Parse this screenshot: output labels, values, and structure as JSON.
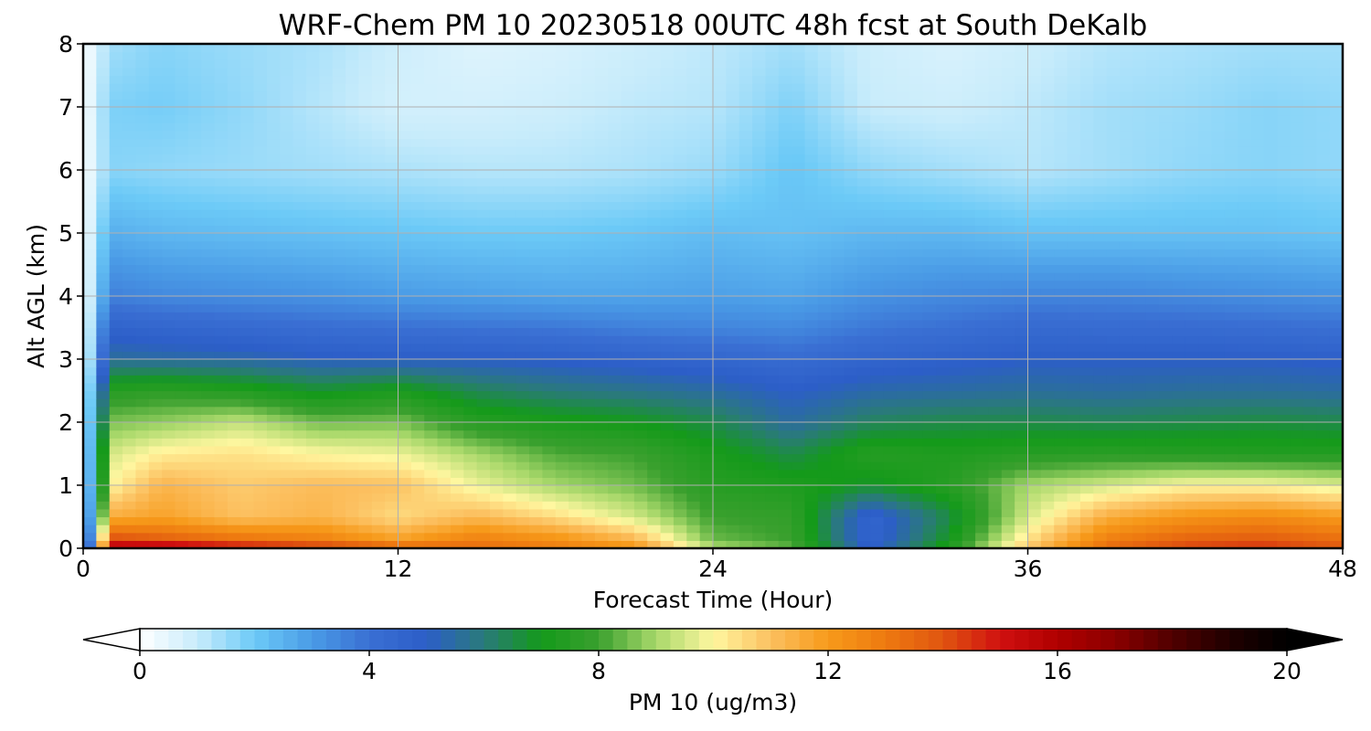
{
  "chart_data": {
    "type": "heatmap",
    "title": "WRF-Chem PM 10  20230518 00UTC 48h fcst at South DeKalb",
    "xlabel": "Forecast Time (Hour)",
    "ylabel": "Alt AGL (km)",
    "xlim": [
      0,
      48
    ],
    "ylim": [
      0,
      8
    ],
    "x_ticks": [
      "0",
      "12",
      "24",
      "36",
      "48"
    ],
    "y_ticks": [
      "0",
      "1",
      "2",
      "3",
      "4",
      "5",
      "6",
      "7",
      "8"
    ],
    "grid": true,
    "value_unit_label": "PM 10  (ug/m3)",
    "colorbar": {
      "min": 0,
      "max": 20,
      "ticks": [
        "0",
        "4",
        "8",
        "12",
        "16",
        "20"
      ],
      "extend": "both",
      "orientation": "horizontal",
      "stops": [
        [
          0,
          "#ffffff"
        ],
        [
          1,
          "#c8ecfb"
        ],
        [
          2,
          "#6ccaf7"
        ],
        [
          3,
          "#4a9be6"
        ],
        [
          4,
          "#3a6fd3"
        ],
        [
          5,
          "#2c5ec8"
        ],
        [
          6,
          "#2a7a7a"
        ],
        [
          7,
          "#149a1a"
        ],
        [
          8,
          "#3aa02e"
        ],
        [
          9,
          "#a8d86a"
        ],
        [
          10,
          "#fff7a0"
        ],
        [
          11,
          "#fcc060"
        ],
        [
          12,
          "#f79a1a"
        ],
        [
          13,
          "#ee7a10"
        ],
        [
          14,
          "#e05510"
        ],
        [
          15,
          "#d01010"
        ],
        [
          16,
          "#b00000"
        ],
        [
          17,
          "#8a0000"
        ],
        [
          18,
          "#500000"
        ],
        [
          19,
          "#200000"
        ],
        [
          20,
          "#000000"
        ]
      ]
    },
    "x": [
      0,
      1,
      3,
      6,
      9,
      12,
      15,
      18,
      21,
      24,
      27,
      30,
      33,
      36,
      39,
      42,
      45,
      48
    ],
    "y": [
      0,
      0.1,
      0.5,
      1.0,
      1.5,
      2.0,
      2.5,
      3.0,
      3.5,
      4.0,
      5.0,
      6.0,
      7.0,
      8.0
    ],
    "z": [
      [
        0,
        16.5,
        17,
        16,
        15.5,
        14.5,
        13.5,
        13,
        12.5,
        9.5,
        8.5,
        5,
        7.5,
        11,
        13.5,
        14.5,
        14.8,
        14
      ],
      [
        0,
        14.5,
        14,
        13.5,
        13,
        12,
        13,
        12.5,
        11.5,
        8.5,
        8,
        4.5,
        7,
        10.5,
        13,
        13.8,
        14,
        13.5
      ],
      [
        0,
        11.5,
        11.8,
        11,
        11.3,
        10.5,
        11.2,
        10.5,
        9.5,
        8,
        7.8,
        4.5,
        6.5,
        9.5,
        11.5,
        12.2,
        12.5,
        12
      ],
      [
        0,
        10,
        11.3,
        10.8,
        11.1,
        11,
        9.8,
        9,
        8.5,
        7.5,
        7.3,
        6.8,
        7.5,
        9,
        9.5,
        10,
        10,
        9.6
      ],
      [
        0,
        9.5,
        10.2,
        10.4,
        10,
        9.8,
        9,
        8.2,
        8,
        7.2,
        6.5,
        7.5,
        7.3,
        7.5,
        7.6,
        7.5,
        7.4,
        7.4
      ],
      [
        0,
        8.6,
        8.8,
        9.3,
        8.5,
        8.6,
        7.5,
        7.2,
        7,
        6.5,
        5.5,
        6.3,
        6.5,
        6.5,
        6.4,
        6.5,
        6.6,
        6.5
      ],
      [
        0,
        7.5,
        7.7,
        7.4,
        6.8,
        7.2,
        6.4,
        6,
        5.8,
        5.5,
        5,
        5.4,
        5.5,
        5.6,
        5.5,
        5.6,
        5.6,
        5.5
      ],
      [
        0,
        5.6,
        5.5,
        5.4,
        5.1,
        5,
        5,
        4.9,
        4.7,
        4.5,
        4.2,
        4.6,
        4.8,
        5,
        5,
        5,
        5,
        4.9
      ],
      [
        0,
        4.7,
        4.5,
        4.3,
        4.1,
        4,
        3.9,
        3.8,
        3.6,
        3.5,
        3.4,
        3.8,
        4,
        4.3,
        4.2,
        4.2,
        4.1,
        4
      ],
      [
        0,
        3.6,
        3.4,
        3.3,
        3.2,
        3,
        2.9,
        2.8,
        2.8,
        2.9,
        2.8,
        3.2,
        3.4,
        3.5,
        3.5,
        3.4,
        3.3,
        3.2
      ],
      [
        0,
        2.6,
        2.4,
        2.3,
        2.2,
        2.1,
        2,
        2,
        2.1,
        2.3,
        2.2,
        2.4,
        2.4,
        2.2,
        2.2,
        2.2,
        2.2,
        2.1
      ],
      [
        0,
        1.7,
        1.6,
        1.5,
        1.4,
        1.3,
        1.2,
        1.2,
        1.3,
        1.5,
        2.1,
        1.6,
        1.4,
        1.2,
        1.4,
        1.6,
        1.7,
        1.6
      ],
      [
        0,
        1.8,
        1.9,
        1.6,
        1.2,
        0.8,
        0.8,
        0.9,
        1.1,
        1.2,
        1.8,
        1,
        0.9,
        1.1,
        1.4,
        1.5,
        1.7,
        1.6
      ],
      [
        0,
        1.4,
        1.7,
        1.5,
        1.3,
        0.9,
        0.6,
        0.7,
        0.9,
        1.1,
        1.4,
        0.9,
        0.7,
        0.9,
        1.2,
        1.3,
        1.4,
        1.4
      ]
    ]
  }
}
